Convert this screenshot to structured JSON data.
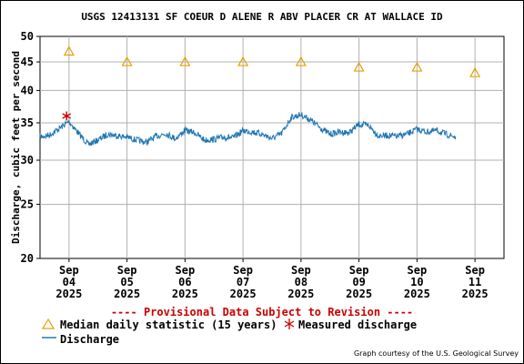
{
  "chart_data": {
    "type": "line",
    "title": "USGS 12413131 SF COEUR D ALENE R ABV PLACER CR AT WALLACE ID",
    "ylabel": "Discharge, cubic feet per second",
    "yscale": "log",
    "ylim": [
      20,
      50
    ],
    "yticks": [
      20,
      25,
      30,
      35,
      40,
      45,
      50
    ],
    "xlim": [
      "2025-09-03T12:00",
      "2025-09-11T12:00"
    ],
    "xticks": [
      {
        "at": "2025-09-04",
        "lines": [
          "Sep",
          "04",
          "2025"
        ]
      },
      {
        "at": "2025-09-05",
        "lines": [
          "Sep",
          "05",
          "2025"
        ]
      },
      {
        "at": "2025-09-06",
        "lines": [
          "Sep",
          "06",
          "2025"
        ]
      },
      {
        "at": "2025-09-07",
        "lines": [
          "Sep",
          "07",
          "2025"
        ]
      },
      {
        "at": "2025-09-08",
        "lines": [
          "Sep",
          "08",
          "2025"
        ]
      },
      {
        "at": "2025-09-09",
        "lines": [
          "Sep",
          "09",
          "2025"
        ]
      },
      {
        "at": "2025-09-10",
        "lines": [
          "Sep",
          "10",
          "2025"
        ]
      },
      {
        "at": "2025-09-11",
        "lines": [
          "Sep",
          "11",
          "2025"
        ]
      }
    ],
    "grid": true,
    "series": [
      {
        "name": "Median daily statistic (15 years)",
        "marker": "triangle",
        "color": "#e6a000",
        "points": [
          {
            "x": "2025-09-04",
            "y": 47
          },
          {
            "x": "2025-09-05",
            "y": 45
          },
          {
            "x": "2025-09-06",
            "y": 45
          },
          {
            "x": "2025-09-07",
            "y": 45
          },
          {
            "x": "2025-09-08",
            "y": 45
          },
          {
            "x": "2025-09-09",
            "y": 44
          },
          {
            "x": "2025-09-10",
            "y": 44
          },
          {
            "x": "2025-09-11",
            "y": 43
          }
        ]
      },
      {
        "name": "Measured discharge",
        "marker": "asterisk",
        "color": "#cc0000",
        "points": [
          {
            "x": "2025-09-03T23:00",
            "y": 36
          }
        ]
      },
      {
        "name": "Discharge",
        "color": "#1f77b4",
        "points": [
          {
            "x": "2025-09-03T12:00",
            "y": 33.0
          },
          {
            "x": "2025-09-03T16:00",
            "y": 33.3
          },
          {
            "x": "2025-09-03T20:00",
            "y": 34.2
          },
          {
            "x": "2025-09-04T00:00",
            "y": 35.2
          },
          {
            "x": "2025-09-04T04:00",
            "y": 33.5
          },
          {
            "x": "2025-09-04T08:00",
            "y": 32.0
          },
          {
            "x": "2025-09-04T12:00",
            "y": 32.6
          },
          {
            "x": "2025-09-04T16:00",
            "y": 33.4
          },
          {
            "x": "2025-09-04T20:00",
            "y": 33.2
          },
          {
            "x": "2025-09-05T00:00",
            "y": 33.0
          },
          {
            "x": "2025-09-05T04:00",
            "y": 32.6
          },
          {
            "x": "2025-09-05T08:00",
            "y": 32.3
          },
          {
            "x": "2025-09-05T12:00",
            "y": 33.1
          },
          {
            "x": "2025-09-05T16:00",
            "y": 33.5
          },
          {
            "x": "2025-09-05T20:00",
            "y": 32.8
          },
          {
            "x": "2025-09-06T00:00",
            "y": 33.9
          },
          {
            "x": "2025-09-06T04:00",
            "y": 33.6
          },
          {
            "x": "2025-09-06T08:00",
            "y": 32.6
          },
          {
            "x": "2025-09-06T12:00",
            "y": 32.7
          },
          {
            "x": "2025-09-06T16:00",
            "y": 33.0
          },
          {
            "x": "2025-09-06T20:00",
            "y": 32.9
          },
          {
            "x": "2025-09-07T00:00",
            "y": 33.9
          },
          {
            "x": "2025-09-07T04:00",
            "y": 33.7
          },
          {
            "x": "2025-09-07T08:00",
            "y": 33.4
          },
          {
            "x": "2025-09-07T12:00",
            "y": 32.8
          },
          {
            "x": "2025-09-07T16:00",
            "y": 33.5
          },
          {
            "x": "2025-09-07T20:00",
            "y": 35.8
          },
          {
            "x": "2025-09-08T00:00",
            "y": 36.2
          },
          {
            "x": "2025-09-08T04:00",
            "y": 35.4
          },
          {
            "x": "2025-09-08T08:00",
            "y": 34.3
          },
          {
            "x": "2025-09-08T12:00",
            "y": 33.4
          },
          {
            "x": "2025-09-08T16:00",
            "y": 33.7
          },
          {
            "x": "2025-09-08T20:00",
            "y": 33.6
          },
          {
            "x": "2025-09-09T00:00",
            "y": 34.8
          },
          {
            "x": "2025-09-09T04:00",
            "y": 34.6
          },
          {
            "x": "2025-09-09T08:00",
            "y": 33.2
          },
          {
            "x": "2025-09-09T12:00",
            "y": 33.2
          },
          {
            "x": "2025-09-09T16:00",
            "y": 33.1
          },
          {
            "x": "2025-09-09T20:00",
            "y": 33.4
          },
          {
            "x": "2025-09-10T00:00",
            "y": 34.1
          },
          {
            "x": "2025-09-10T04:00",
            "y": 33.7
          },
          {
            "x": "2025-09-10T08:00",
            "y": 33.9
          },
          {
            "x": "2025-09-10T12:00",
            "y": 33.4
          },
          {
            "x": "2025-09-10T16:00",
            "y": 33.0
          }
        ]
      }
    ]
  },
  "page": {
    "title": "USGS 12413131 SF COEUR D ALENE R ABV PLACER CR AT WALLACE ID",
    "ylabel": "Discharge, cubic feet per second",
    "provisional": "---- Provisional Data Subject to Revision ----",
    "legend_median": "Median daily statistic (15 years)",
    "legend_measured": "Measured discharge",
    "legend_discharge": "Discharge",
    "credit": "Graph courtesy of the U.S. Geological Survey"
  }
}
